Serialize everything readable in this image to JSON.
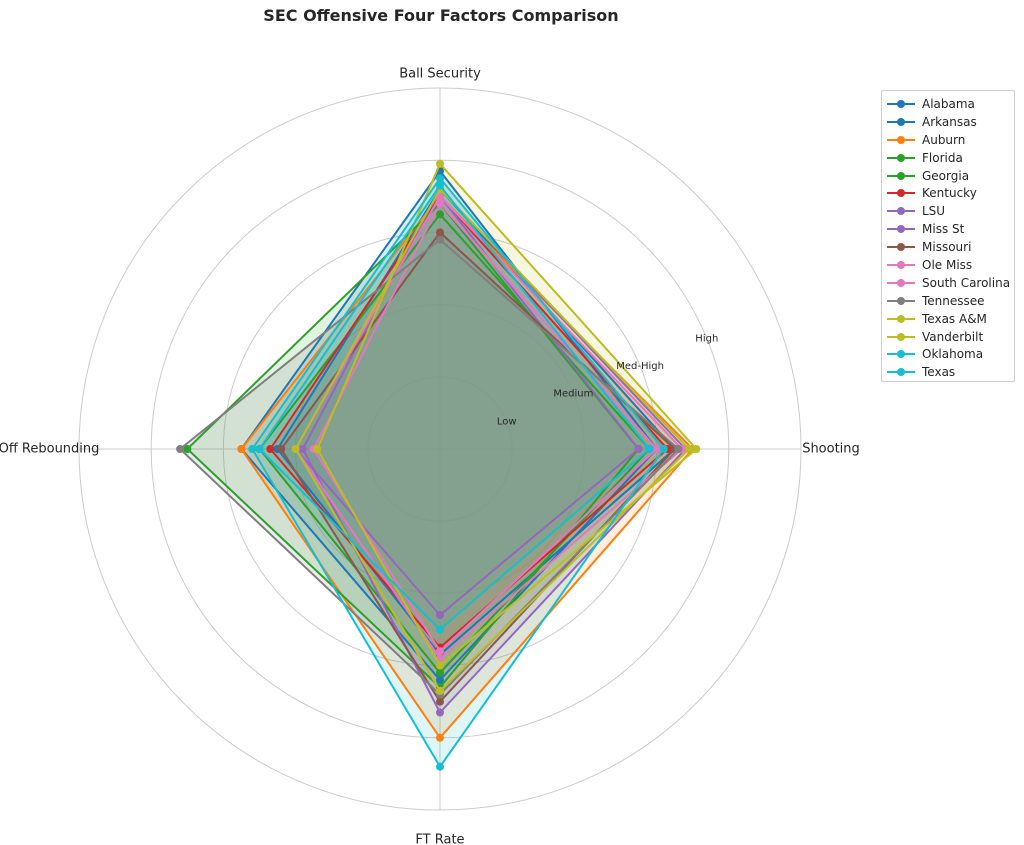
{
  "chart_data": {
    "type": "radar",
    "title": "SEC Offensive Four Factors Comparison",
    "axes": [
      "Ball Security",
      "Shooting",
      "FT Rate",
      "Off Rebounding"
    ],
    "rlim": [
      0,
      1.0
    ],
    "rings": [
      0.2,
      0.4,
      0.6,
      0.8,
      1.0
    ],
    "ring_labels": [
      {
        "r": 0.2,
        "label": "Low"
      },
      {
        "r": 0.4,
        "label": "Medium"
      },
      {
        "r": 0.6,
        "label": "Med-High"
      },
      {
        "r": 0.8,
        "label": "High"
      }
    ],
    "grid": true,
    "legend_position": "right",
    "series": [
      {
        "name": "Alabama",
        "color": "#1f77b4",
        "values": [
          0.72,
          0.65,
          0.57,
          0.45
        ]
      },
      {
        "name": "Arkansas",
        "color": "#1f77b4",
        "values": [
          0.77,
          0.6,
          0.64,
          0.55
        ]
      },
      {
        "name": "Auburn",
        "color": "#ff7f0e",
        "values": [
          0.7,
          0.7,
          0.8,
          0.55
        ]
      },
      {
        "name": "Florida",
        "color": "#2ca02c",
        "values": [
          0.68,
          0.55,
          0.66,
          0.7
        ]
      },
      {
        "name": "Georgia",
        "color": "#2ca02c",
        "values": [
          0.65,
          0.58,
          0.62,
          0.5
        ]
      },
      {
        "name": "Kentucky",
        "color": "#d62728",
        "values": [
          0.7,
          0.63,
          0.55,
          0.47
        ]
      },
      {
        "name": "LSU",
        "color": "#9467bd",
        "values": [
          0.72,
          0.68,
          0.73,
          0.38
        ]
      },
      {
        "name": "Miss St",
        "color": "#9467bd",
        "values": [
          0.7,
          0.55,
          0.46,
          0.4
        ]
      },
      {
        "name": "Missouri",
        "color": "#8c564b",
        "values": [
          0.6,
          0.65,
          0.7,
          0.44
        ]
      },
      {
        "name": "Ole Miss",
        "color": "#e377c2",
        "values": [
          0.68,
          0.6,
          0.56,
          0.35
        ]
      },
      {
        "name": "South Carolina",
        "color": "#e377c2",
        "values": [
          0.7,
          0.67,
          0.58,
          0.4
        ]
      },
      {
        "name": "Tennessee",
        "color": "#7f7f7f",
        "values": [
          0.58,
          0.66,
          0.68,
          0.72
        ]
      },
      {
        "name": "Texas A&M",
        "color": "#bcbd22",
        "values": [
          0.79,
          0.71,
          0.6,
          0.34
        ]
      },
      {
        "name": "Vanderbilt",
        "color": "#bcbd22",
        "values": [
          0.72,
          0.69,
          0.67,
          0.4
        ]
      },
      {
        "name": "Oklahoma",
        "color": "#17becf",
        "values": [
          0.73,
          0.58,
          0.5,
          0.5
        ]
      },
      {
        "name": "Texas",
        "color": "#17becf",
        "values": [
          0.75,
          0.62,
          0.88,
          0.52
        ]
      }
    ]
  }
}
